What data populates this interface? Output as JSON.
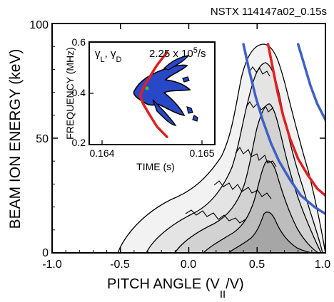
{
  "chart_data": {
    "type": "contour",
    "title": "NSTX 114147a02_0.15s",
    "xlabel": "PITCH ANGLE (V",
    "xlabel_sub": "II",
    "xlabel_end": "/V)",
    "ylabel": "BEAM ION ENERGY (keV)",
    "xlim": [
      -1.0,
      1.0
    ],
    "ylim": [
      0,
      100
    ],
    "xticks": [
      "-1.0",
      "-0.5",
      "0.0",
      "0.5",
      "1.0"
    ],
    "yticks": [
      "0",
      "50",
      "100"
    ],
    "curves": [
      {
        "color": "#3f5fc8",
        "x": [
          0.4,
          0.44,
          0.49,
          0.54,
          0.6,
          0.66,
          0.74,
          0.82,
          0.92,
          1.0
        ],
        "y": [
          91,
          80,
          68,
          58,
          48,
          40,
          32,
          25,
          20,
          17
        ]
      },
      {
        "color": "#e02020",
        "x": [
          0.58,
          0.61,
          0.65,
          0.69,
          0.74,
          0.8,
          0.87,
          0.94,
          1.0
        ],
        "y": [
          91,
          82,
          70,
          60,
          50,
          41,
          34,
          28,
          25
        ]
      },
      {
        "color": "#3f5fc8",
        "x": [
          0.8,
          0.84,
          0.89,
          0.94,
          1.0
        ],
        "y": [
          91,
          83,
          73,
          65,
          58
        ]
      }
    ],
    "inset": {
      "ylabel": "FREQUENCY (MHz)",
      "xlabel": "TIME (s)",
      "xlim": [
        0.164,
        0.165
      ],
      "ylim": [
        0.2,
        0.6
      ],
      "xticks": [
        "0.164",
        "0.165"
      ],
      "yticks": [
        "0.2",
        "0.4",
        "0.6"
      ],
      "annotation_gamma": "γ",
      "annotation_sub_l": "L",
      "annotation_sep": ", γ",
      "annotation_sub_d": "D",
      "annotation_rate": "2.25 x 10",
      "annotation_exp": "5",
      "annotation_unit": "/s",
      "fit": {
        "color": "#e02020",
        "x": [
          0.16465,
          0.16455,
          0.16447,
          0.16441,
          0.16438,
          0.16441,
          0.16447,
          0.16455,
          0.16465
        ],
        "y": [
          0.56,
          0.51,
          0.46,
          0.42,
          0.39,
          0.36,
          0.32,
          0.27,
          0.23
        ]
      }
    }
  }
}
